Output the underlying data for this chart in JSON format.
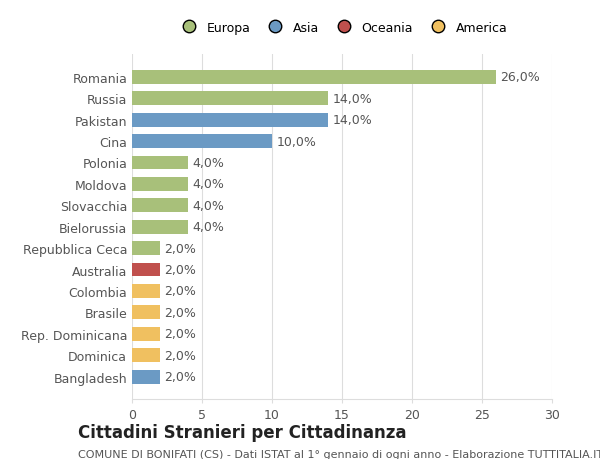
{
  "countries": [
    "Romania",
    "Russia",
    "Pakistan",
    "Cina",
    "Polonia",
    "Moldova",
    "Slovacchia",
    "Bielorussia",
    "Repubblica Ceca",
    "Australia",
    "Colombia",
    "Brasile",
    "Rep. Dominicana",
    "Dominica",
    "Bangladesh"
  ],
  "values": [
    26.0,
    14.0,
    14.0,
    10.0,
    4.0,
    4.0,
    4.0,
    4.0,
    2.0,
    2.0,
    2.0,
    2.0,
    2.0,
    2.0,
    2.0
  ],
  "continents": [
    "Europa",
    "Europa",
    "Asia",
    "Asia",
    "Europa",
    "Europa",
    "Europa",
    "Europa",
    "Europa",
    "Oceania",
    "America",
    "America",
    "America",
    "America",
    "Asia"
  ],
  "colors": {
    "Europa": "#a8c07a",
    "Asia": "#6b9ac4",
    "Oceania": "#c0504d",
    "America": "#f0c060"
  },
  "legend_order": [
    "Europa",
    "Asia",
    "Oceania",
    "America"
  ],
  "title": "Cittadini Stranieri per Cittadinanza",
  "subtitle": "COMUNE DI BONIFATI (CS) - Dati ISTAT al 1° gennaio di ogni anno - Elaborazione TUTTITALIA.IT",
  "xlim": [
    0,
    30
  ],
  "xticks": [
    0,
    5,
    10,
    15,
    20,
    25,
    30
  ],
  "background_color": "#ffffff",
  "grid_color": "#dddddd",
  "bar_label_fontsize": 9,
  "axis_label_fontsize": 9,
  "title_fontsize": 12,
  "subtitle_fontsize": 8
}
